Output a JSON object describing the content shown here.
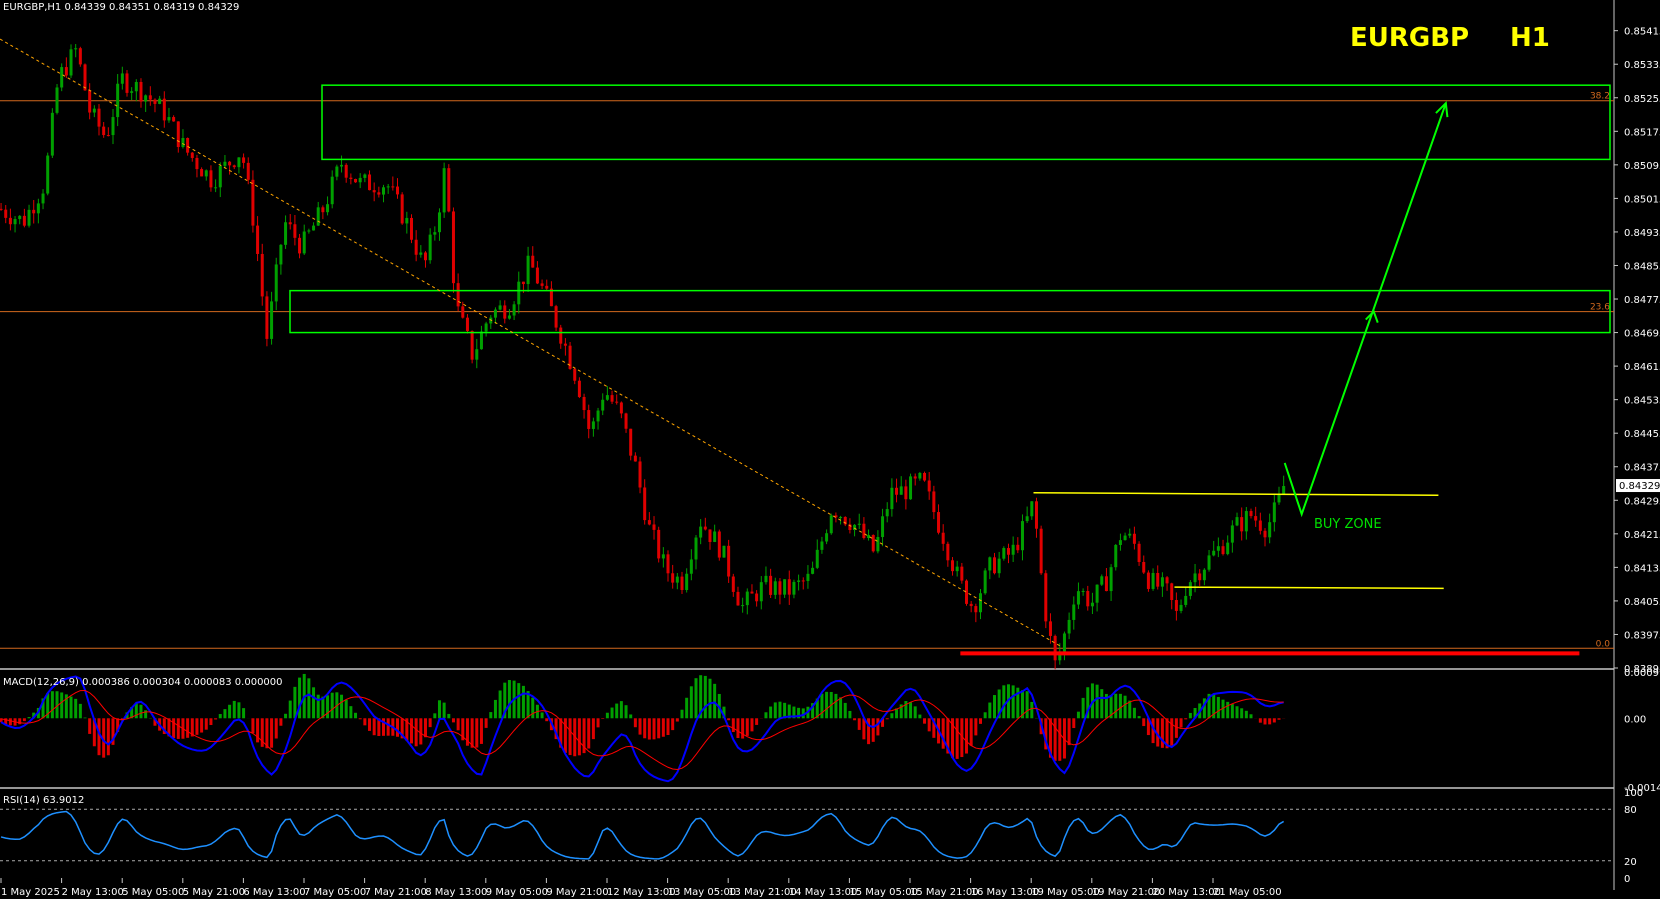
{
  "header": {
    "info": "EURGBP,H1  0.84339 0.84351 0.84319 0.84329"
  },
  "symbol_title": {
    "symbol": "EURGBP",
    "timeframe": "H1"
  },
  "annotations": {
    "buy_zone": "BUY ZONE",
    "current_price": "0.84329"
  },
  "colors": {
    "bull": "#00a000",
    "bear": "#e00000",
    "fib": "#d2691e",
    "zone": "#00ff00",
    "support": "#ffff00",
    "trendline": "#ffa500",
    "macd_line": "#0000ff",
    "macd_signal": "#ff0000",
    "rsi_line": "#1e90ff"
  },
  "chart_data": {
    "type": "candlestick",
    "symbol": "EURGBP",
    "timeframe": "H1",
    "price_axis": {
      "range": [
        0.83895,
        0.8545
      ],
      "ticks": [
        "0.85415",
        "0.85335",
        "0.85255",
        "0.85175",
        "0.85095",
        "0.85015",
        "0.84935",
        "0.84855",
        "0.84775",
        "0.84695",
        "0.84615",
        "0.84535",
        "0.84455",
        "0.84375",
        "0.84295",
        "0.84215",
        "0.84135",
        "0.84055",
        "0.83975",
        "0.83895"
      ]
    },
    "time_ticks": [
      "1 May 2025",
      "2 May 13:00",
      "5 May 05:00",
      "5 May 21:00",
      "6 May 13:00",
      "7 May 05:00",
      "7 May 21:00",
      "8 May 13:00",
      "9 May 05:00",
      "9 May 21:00",
      "12 May 13:00",
      "13 May 05:00",
      "13 May 21:00",
      "14 May 13:00",
      "15 May 05:00",
      "15 May 21:00",
      "16 May 13:00",
      "19 May 05:00",
      "19 May 21:00",
      "20 May 13:00",
      "21 May 05:00"
    ],
    "price_path": [
      [
        0,
        0.8499
      ],
      [
        22,
        0.8496
      ],
      [
        42,
        0.8505
      ],
      [
        55,
        0.853
      ],
      [
        72,
        0.8537
      ],
      [
        85,
        0.8522
      ],
      [
        100,
        0.8516
      ],
      [
        115,
        0.853
      ],
      [
        135,
        0.8527
      ],
      [
        155,
        0.8522
      ],
      [
        175,
        0.8513
      ],
      [
        200,
        0.8506
      ],
      [
        228,
        0.8513
      ],
      [
        240,
        0.8495
      ],
      [
        252,
        0.8468
      ],
      [
        268,
        0.8496
      ],
      [
        285,
        0.849
      ],
      [
        305,
        0.8499
      ],
      [
        322,
        0.851
      ],
      [
        340,
        0.8505
      ],
      [
        365,
        0.8505
      ],
      [
        385,
        0.8495
      ],
      [
        400,
        0.8485
      ],
      [
        412,
        0.8496
      ],
      [
        420,
        0.8509
      ],
      [
        430,
        0.8476
      ],
      [
        446,
        0.8464
      ],
      [
        462,
        0.8474
      ],
      [
        480,
        0.8476
      ],
      [
        500,
        0.8486
      ],
      [
        515,
        0.8478
      ],
      [
        528,
        0.847
      ],
      [
        545,
        0.8458
      ],
      [
        557,
        0.8445
      ],
      [
        570,
        0.8456
      ],
      [
        585,
        0.845
      ],
      [
        600,
        0.8437
      ],
      [
        612,
        0.8423
      ],
      [
        628,
        0.8413
      ],
      [
        643,
        0.841
      ],
      [
        660,
        0.8425
      ],
      [
        680,
        0.8418
      ],
      [
        700,
        0.8404
      ],
      [
        720,
        0.8409
      ],
      [
        745,
        0.8408
      ],
      [
        765,
        0.8411
      ],
      [
        785,
        0.8428
      ],
      [
        805,
        0.8424
      ],
      [
        825,
        0.8417
      ],
      [
        840,
        0.8431
      ],
      [
        855,
        0.8432
      ],
      [
        870,
        0.8434
      ],
      [
        890,
        0.8421
      ],
      [
        905,
        0.841
      ],
      [
        918,
        0.8404
      ],
      [
        935,
        0.8414
      ],
      [
        955,
        0.8417
      ],
      [
        968,
        0.8424
      ],
      [
        975,
        0.8429
      ],
      [
        985,
        0.8405
      ],
      [
        995,
        0.839
      ],
      [
        1002,
        0.8395
      ],
      [
        1015,
        0.8409
      ],
      [
        1030,
        0.8405
      ],
      [
        1045,
        0.8411
      ],
      [
        1058,
        0.8422
      ],
      [
        1070,
        0.8419
      ],
      [
        1085,
        0.841
      ],
      [
        1100,
        0.8408
      ],
      [
        1110,
        0.8402
      ],
      [
        1120,
        0.841
      ],
      [
        1135,
        0.8414
      ],
      [
        1150,
        0.8418
      ],
      [
        1165,
        0.8423
      ],
      [
        1180,
        0.8426
      ],
      [
        1195,
        0.8423
      ],
      [
        1205,
        0.8428
      ],
      [
        1212,
        0.84329
      ]
    ],
    "fibonacci": [
      {
        "level": "38.2",
        "price": 0.85248
      },
      {
        "level": "23.6",
        "price": 0.84745
      },
      {
        "level": "0.0",
        "price": 0.83942
      }
    ],
    "zones": [
      {
        "from": 0.85108,
        "to": 0.85285
      },
      {
        "from": 0.84695,
        "to": 0.84795
      }
    ],
    "support_lines": [
      {
        "from_price": 0.84313,
        "to_price": 0.84307
      },
      {
        "from_price": 0.84088,
        "to_price": 0.84085
      }
    ],
    "red_support": 0.8393,
    "projection_target": 0.85242,
    "macd": {
      "label": "MACD(12,26,9) 0.000386 0.000304 0.000083 0.000000",
      "ticks": [
        "0.000977",
        "0.00",
        "-0.001451"
      ],
      "range": [
        -0.001451,
        0.000977
      ]
    },
    "rsi": {
      "label": "RSI(14) 63.9012",
      "ticks": [
        "100",
        "80",
        "20",
        "0"
      ],
      "levels": [
        80,
        20
      ],
      "range": [
        0,
        100
      ]
    }
  }
}
